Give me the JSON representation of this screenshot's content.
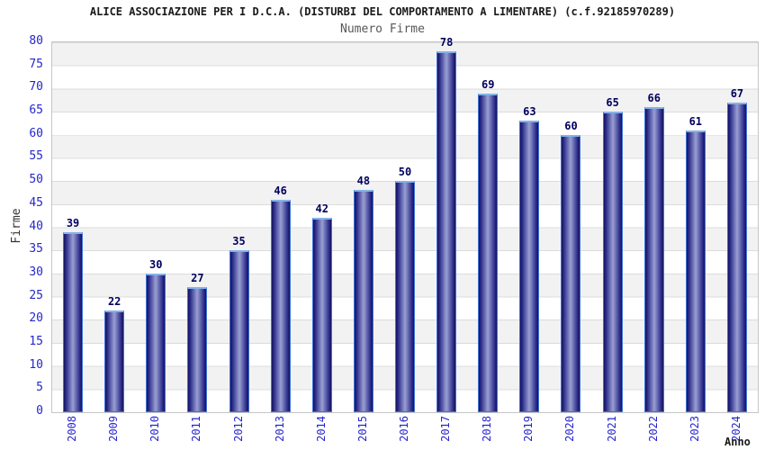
{
  "chart_data": {
    "type": "bar",
    "title": "ALICE ASSOCIAZIONE PER I D.C.A. (DISTURBI DEL COMPORTAMENTO A LIMENTARE) (c.f.92185970289)",
    "subtitle": "Numero Firme",
    "xlabel": "Anno",
    "ylabel": "Firme",
    "categories": [
      "2008",
      "2009",
      "2010",
      "2011",
      "2012",
      "2013",
      "2014",
      "2015",
      "2016",
      "2017",
      "2018",
      "2019",
      "2020",
      "2021",
      "2022",
      "2023",
      "2024"
    ],
    "values": [
      39,
      22,
      30,
      27,
      35,
      46,
      42,
      48,
      50,
      78,
      69,
      63,
      60,
      65,
      66,
      61,
      67
    ],
    "ylim": [
      0,
      80
    ],
    "ytick_step": 5,
    "yticks": [
      0,
      5,
      10,
      15,
      20,
      25,
      30,
      35,
      40,
      45,
      50,
      55,
      60,
      65,
      70,
      75,
      80
    ],
    "grid": "horizontal gridlines with alternating gray/white bands every 5 units",
    "legend_position": "none",
    "colors": {
      "title_color": "#1a1a1a",
      "subtitle_color": "#575757",
      "axis_tick_label": "#2626cc",
      "value_label": "#00005e",
      "axis_name_color": "#333333",
      "band_gray": "#f2f2f2",
      "band_white": "#ffffff",
      "gridline": "#dcdcdc",
      "plot_border": "#c6c6c6",
      "bar_dark": "#12125e",
      "bar_mid": "#32328f",
      "bar_light": "#99a0d2",
      "bar_border": "#3f74d8",
      "bar_top_border": "#85b2e8"
    }
  }
}
